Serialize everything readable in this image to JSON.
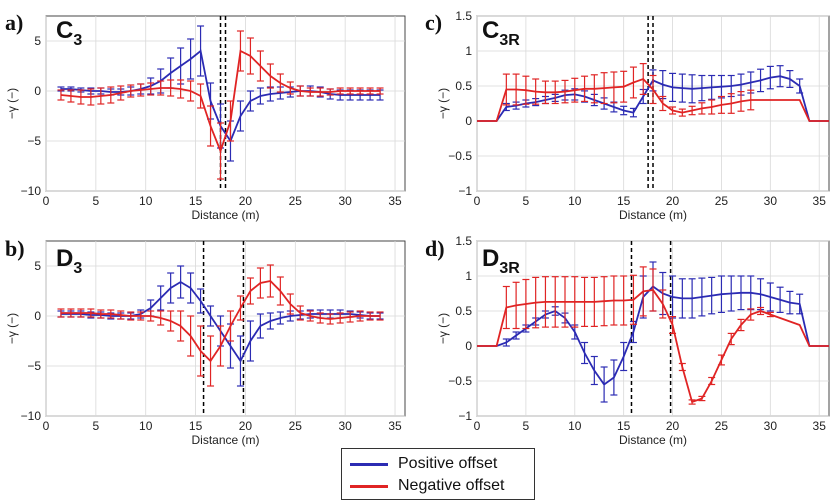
{
  "colors": {
    "positive": "#2b2bb3",
    "negative": "#e02424"
  },
  "legend": {
    "positive_label": "Positive offset",
    "negative_label": "Negative offset"
  },
  "chart_data": [
    {
      "id": "a",
      "type": "line",
      "panel_label": "a)",
      "name_main": "C",
      "name_sub": "3",
      "xlabel": "Distance (m)",
      "ylabel": "−γ (−)",
      "xlim": [
        0,
        36
      ],
      "ylim": [
        -10,
        7.5
      ],
      "xticks": [
        0,
        5,
        10,
        15,
        20,
        25,
        30,
        35
      ],
      "yticks": [
        -10,
        -5,
        0,
        5
      ],
      "vlines": [
        17.5,
        18.0
      ],
      "series": [
        {
          "key": "positive",
          "x": [
            1.5,
            2.5,
            3.5,
            4.5,
            5.5,
            6.5,
            7.5,
            8.5,
            9.5,
            10.5,
            11.5,
            12.5,
            13.5,
            14.5,
            15.5,
            16.5,
            17.5,
            18.5,
            19.5,
            20.5,
            21.5,
            22.5,
            23.5,
            24.5,
            25.5,
            26.5,
            27.5,
            28.5,
            29.5,
            30.5,
            31.5,
            32.5,
            33.5
          ],
          "y": [
            0.2,
            0.2,
            0.1,
            0.0,
            0.0,
            -0.1,
            -0.1,
            0.0,
            0.2,
            0.5,
            1.0,
            1.8,
            2.5,
            3.2,
            4.0,
            -1.0,
            -3.5,
            -5.0,
            -2.5,
            -1.0,
            -0.5,
            -0.3,
            -0.2,
            -0.1,
            0.0,
            0.0,
            -0.1,
            -0.3,
            -0.4,
            -0.4,
            -0.4,
            -0.4,
            -0.4
          ],
          "err": [
            0.2,
            0.2,
            0.2,
            0.3,
            0.3,
            0.3,
            0.3,
            0.4,
            0.5,
            0.8,
            1.2,
            1.5,
            1.8,
            2.0,
            2.5,
            1.8,
            2.2,
            2.0,
            1.5,
            1.0,
            0.8,
            0.7,
            0.6,
            0.5,
            0.5,
            0.5,
            0.5,
            0.5,
            0.5,
            0.5,
            0.5,
            0.5,
            0.5
          ]
        },
        {
          "key": "negative",
          "x": [
            1.5,
            2.5,
            3.5,
            4.5,
            5.5,
            6.5,
            7.5,
            8.5,
            9.5,
            10.5,
            11.5,
            12.5,
            13.5,
            14.5,
            15.5,
            16.5,
            17.5,
            18.5,
            19.5,
            20.5,
            21.5,
            22.5,
            23.5,
            24.5,
            25.5,
            26.5,
            27.5,
            28.5,
            29.5,
            30.5,
            31.5,
            32.5,
            33.5
          ],
          "y": [
            -0.4,
            -0.5,
            -0.6,
            -0.6,
            -0.5,
            -0.4,
            -0.2,
            0.0,
            0.1,
            0.2,
            0.3,
            0.3,
            0.2,
            0.0,
            -0.5,
            -3.5,
            -6.0,
            -3.0,
            4.0,
            3.5,
            2.5,
            1.5,
            0.8,
            0.3,
            0.0,
            -0.1,
            -0.1,
            -0.1,
            0.0,
            0.0,
            0.0,
            0.0,
            0.0
          ],
          "err": [
            0.5,
            0.6,
            0.7,
            0.8,
            0.8,
            0.8,
            0.7,
            0.6,
            0.6,
            0.6,
            0.7,
            0.8,
            0.9,
            1.0,
            1.2,
            2.0,
            2.8,
            2.0,
            2.0,
            1.8,
            1.5,
            1.2,
            0.9,
            0.6,
            0.5,
            0.4,
            0.4,
            0.3,
            0.3,
            0.3,
            0.3,
            0.3,
            0.3
          ]
        }
      ]
    },
    {
      "id": "b",
      "type": "line",
      "panel_label": "b)",
      "name_main": "D",
      "name_sub": "3",
      "xlabel": "Distance (m)",
      "ylabel": "−γ (−)",
      "xlim": [
        0,
        36
      ],
      "ylim": [
        -10,
        7.5
      ],
      "xticks": [
        0,
        5,
        10,
        15,
        20,
        25,
        30,
        35
      ],
      "yticks": [
        -10,
        -5,
        0,
        5
      ],
      "vlines": [
        15.8,
        19.8
      ],
      "series": [
        {
          "key": "positive",
          "x": [
            1.5,
            2.5,
            3.5,
            4.5,
            5.5,
            6.5,
            7.5,
            8.5,
            9.5,
            10.5,
            11.5,
            12.5,
            13.5,
            14.5,
            15.5,
            16.5,
            17.5,
            18.5,
            19.5,
            20.5,
            21.5,
            22.5,
            23.5,
            24.5,
            25.5,
            26.5,
            27.5,
            28.5,
            29.5,
            30.5,
            31.5,
            32.5,
            33.5
          ],
          "y": [
            0.2,
            0.2,
            0.2,
            0.1,
            0.1,
            0.0,
            0.0,
            0.0,
            0.2,
            0.8,
            1.8,
            2.8,
            3.4,
            2.8,
            1.5,
            0.0,
            -1.5,
            -3.0,
            -4.5,
            -2.5,
            -1.0,
            -0.5,
            -0.2,
            0.0,
            0.1,
            0.2,
            0.2,
            0.2,
            0.2,
            0.2,
            0.1,
            0.0,
            0.0
          ],
          "err": [
            0.3,
            0.3,
            0.3,
            0.3,
            0.3,
            0.3,
            0.3,
            0.3,
            0.4,
            0.8,
            1.2,
            1.5,
            1.6,
            1.5,
            1.2,
            1.0,
            1.5,
            2.2,
            2.5,
            2.0,
            1.2,
            0.8,
            0.6,
            0.5,
            0.4,
            0.4,
            0.4,
            0.4,
            0.4,
            0.3,
            0.3,
            0.3,
            0.3
          ]
        },
        {
          "key": "negative",
          "x": [
            1.5,
            2.5,
            3.5,
            4.5,
            5.5,
            6.5,
            7.5,
            8.5,
            9.5,
            10.5,
            11.5,
            12.5,
            13.5,
            14.5,
            15.5,
            16.5,
            17.5,
            18.5,
            19.5,
            20.5,
            21.5,
            22.5,
            23.5,
            24.5,
            25.5,
            26.5,
            27.5,
            28.5,
            29.5,
            30.5,
            31.5,
            32.5,
            33.5
          ],
          "y": [
            0.3,
            0.3,
            0.3,
            0.3,
            0.2,
            0.2,
            0.1,
            0.0,
            0.0,
            0.0,
            -0.2,
            -0.5,
            -1.0,
            -2.0,
            -3.5,
            -4.5,
            -3.0,
            -1.0,
            0.8,
            2.5,
            3.3,
            3.5,
            2.5,
            1.2,
            0.3,
            0.0,
            -0.2,
            -0.3,
            -0.2,
            -0.1,
            0.0,
            0.0,
            0.0
          ],
          "err": [
            0.4,
            0.4,
            0.4,
            0.4,
            0.4,
            0.4,
            0.4,
            0.4,
            0.4,
            0.5,
            0.7,
            1.0,
            1.5,
            2.0,
            2.5,
            2.5,
            2.0,
            1.5,
            1.2,
            1.3,
            1.5,
            1.6,
            1.4,
            1.0,
            0.7,
            0.5,
            0.5,
            0.5,
            0.5,
            0.5,
            0.5,
            0.4,
            0.4
          ]
        }
      ]
    },
    {
      "id": "c",
      "type": "line",
      "panel_label": "c)",
      "name_main": "C",
      "name_sub": "3R",
      "xlabel": "Distance (m)",
      "ylabel": "−γ (−)",
      "xlim": [
        0,
        36
      ],
      "ylim": [
        -1,
        1.5
      ],
      "xticks": [
        0,
        5,
        10,
        15,
        20,
        25,
        30,
        35
      ],
      "yticks": [
        -1,
        -0.5,
        0,
        0.5,
        1,
        1.5
      ],
      "vlines": [
        17.5,
        18.0
      ],
      "series": [
        {
          "key": "positive",
          "x": [
            0.0,
            1.0,
            2.0,
            3.0,
            4.0,
            5.0,
            6.0,
            7.0,
            8.0,
            9.0,
            10.0,
            11.0,
            12.0,
            13.0,
            14.0,
            15.0,
            16.0,
            17.0,
            18.0,
            19.0,
            20.0,
            21.0,
            22.0,
            23.0,
            24.0,
            25.0,
            26.0,
            27.0,
            28.0,
            29.0,
            30.0,
            31.0,
            32.0,
            33.0,
            34.0,
            35.0,
            36.0
          ],
          "y": [
            0.0,
            0.0,
            0.0,
            0.2,
            0.22,
            0.25,
            0.27,
            0.3,
            0.33,
            0.37,
            0.38,
            0.35,
            0.3,
            0.25,
            0.2,
            0.15,
            0.12,
            0.35,
            0.58,
            0.52,
            0.48,
            0.47,
            0.46,
            0.47,
            0.48,
            0.49,
            0.5,
            0.52,
            0.55,
            0.58,
            0.62,
            0.64,
            0.6,
            0.5,
            0.0,
            0.0,
            0.0
          ],
          "err": [
            0,
            0,
            0,
            0.05,
            0.05,
            0.05,
            0.05,
            0.05,
            0.05,
            0.07,
            0.08,
            0.08,
            0.08,
            0.08,
            0.07,
            0.06,
            0.06,
            0.1,
            0.15,
            0.2,
            0.2,
            0.2,
            0.2,
            0.18,
            0.17,
            0.16,
            0.15,
            0.15,
            0.15,
            0.16,
            0.16,
            0.15,
            0.12,
            0.1,
            0,
            0,
            0
          ]
        },
        {
          "key": "negative",
          "x": [
            0.0,
            1.0,
            2.0,
            3.0,
            4.0,
            5.0,
            6.0,
            7.0,
            8.0,
            9.0,
            10.0,
            11.0,
            12.0,
            13.0,
            14.0,
            15.0,
            16.0,
            17.0,
            18.0,
            19.0,
            20.0,
            21.0,
            22.0,
            23.0,
            24.0,
            25.0,
            26.0,
            27.0,
            28.0,
            29.0,
            30.0,
            31.0,
            32.0,
            33.0,
            34.0,
            35.0,
            36.0
          ],
          "y": [
            0.0,
            0.0,
            0.0,
            0.45,
            0.45,
            0.44,
            0.42,
            0.41,
            0.41,
            0.42,
            0.44,
            0.46,
            0.46,
            0.47,
            0.48,
            0.49,
            0.55,
            0.6,
            0.45,
            0.25,
            0.15,
            0.12,
            0.15,
            0.18,
            0.2,
            0.23,
            0.25,
            0.28,
            0.3,
            0.3,
            0.3,
            0.3,
            0.3,
            0.3,
            0.0,
            0.0,
            0.0
          ],
          "err": [
            0,
            0,
            0,
            0.22,
            0.22,
            0.2,
            0.18,
            0.16,
            0.16,
            0.16,
            0.17,
            0.18,
            0.2,
            0.22,
            0.22,
            0.22,
            0.22,
            0.22,
            0.2,
            0.1,
            0.05,
            0.05,
            0.06,
            0.08,
            0.1,
            0.12,
            0.14,
            0.14,
            0.14,
            0,
            0,
            0,
            0,
            0,
            0,
            0,
            0
          ]
        }
      ]
    },
    {
      "id": "d",
      "type": "line",
      "panel_label": "d)",
      "name_main": "D",
      "name_sub": "3R",
      "xlabel": "Distance (m)",
      "ylabel": "−γ (−)",
      "xlim": [
        0,
        36
      ],
      "ylim": [
        -1,
        1.5
      ],
      "xticks": [
        0,
        5,
        10,
        15,
        20,
        25,
        30,
        35
      ],
      "yticks": [
        -1,
        -0.5,
        0,
        0.5,
        1,
        1.5
      ],
      "vlines": [
        15.8,
        19.8
      ],
      "series": [
        {
          "key": "positive",
          "x": [
            0.0,
            1.0,
            2.0,
            3.0,
            4.0,
            5.0,
            6.0,
            7.0,
            8.0,
            9.0,
            10.0,
            11.0,
            12.0,
            13.0,
            14.0,
            15.0,
            16.0,
            17.0,
            18.0,
            19.0,
            20.0,
            21.0,
            22.0,
            23.0,
            24.0,
            25.0,
            26.0,
            27.0,
            28.0,
            29.0,
            30.0,
            31.0,
            32.0,
            33.0,
            34.0,
            35.0,
            36.0
          ],
          "y": [
            0.0,
            0.0,
            0.0,
            0.05,
            0.15,
            0.25,
            0.35,
            0.45,
            0.5,
            0.4,
            0.2,
            -0.1,
            -0.35,
            -0.55,
            -0.45,
            -0.15,
            0.2,
            0.7,
            0.85,
            0.75,
            0.7,
            0.68,
            0.68,
            0.7,
            0.72,
            0.74,
            0.75,
            0.76,
            0.76,
            0.74,
            0.7,
            0.66,
            0.62,
            0.6,
            0.0,
            0.0,
            0.0
          ],
          "err": [
            0,
            0,
            0,
            0.05,
            0.05,
            0.05,
            0.05,
            0.05,
            0.06,
            0.07,
            0.1,
            0.15,
            0.2,
            0.25,
            0.25,
            0.2,
            0.15,
            0.3,
            0.35,
            0.3,
            0.3,
            0.28,
            0.28,
            0.27,
            0.26,
            0.26,
            0.25,
            0.24,
            0.24,
            0.22,
            0.2,
            0.18,
            0.16,
            0.14,
            0,
            0,
            0
          ]
        },
        {
          "key": "negative",
          "x": [
            0.0,
            1.0,
            2.0,
            3.0,
            4.0,
            5.0,
            6.0,
            7.0,
            8.0,
            9.0,
            10.0,
            11.0,
            12.0,
            13.0,
            14.0,
            15.0,
            16.0,
            17.0,
            18.0,
            19.0,
            20.0,
            21.0,
            22.0,
            23.0,
            24.0,
            25.0,
            26.0,
            27.0,
            28.0,
            29.0,
            30.0,
            31.0,
            32.0,
            33.0,
            34.0,
            35.0,
            36.0
          ],
          "y": [
            0.0,
            0.0,
            0.0,
            0.55,
            0.58,
            0.6,
            0.62,
            0.63,
            0.63,
            0.63,
            0.63,
            0.63,
            0.63,
            0.64,
            0.65,
            0.65,
            0.66,
            0.78,
            0.8,
            0.6,
            0.3,
            -0.3,
            -0.8,
            -0.75,
            -0.5,
            -0.2,
            0.1,
            0.3,
            0.45,
            0.5,
            0.45,
            0.4,
            0.35,
            0.3,
            0.0,
            0.0,
            0.0
          ],
          "err": [
            0,
            0,
            0,
            0.3,
            0.33,
            0.35,
            0.36,
            0.36,
            0.36,
            0.36,
            0.36,
            0.35,
            0.35,
            0.35,
            0.35,
            0.35,
            0.35,
            0.35,
            0.3,
            0.2,
            0.12,
            0.05,
            0.03,
            0.03,
            0.05,
            0.07,
            0.08,
            0.08,
            0.08,
            0.05,
            0.03,
            0,
            0,
            0,
            0,
            0,
            0
          ]
        }
      ]
    }
  ]
}
